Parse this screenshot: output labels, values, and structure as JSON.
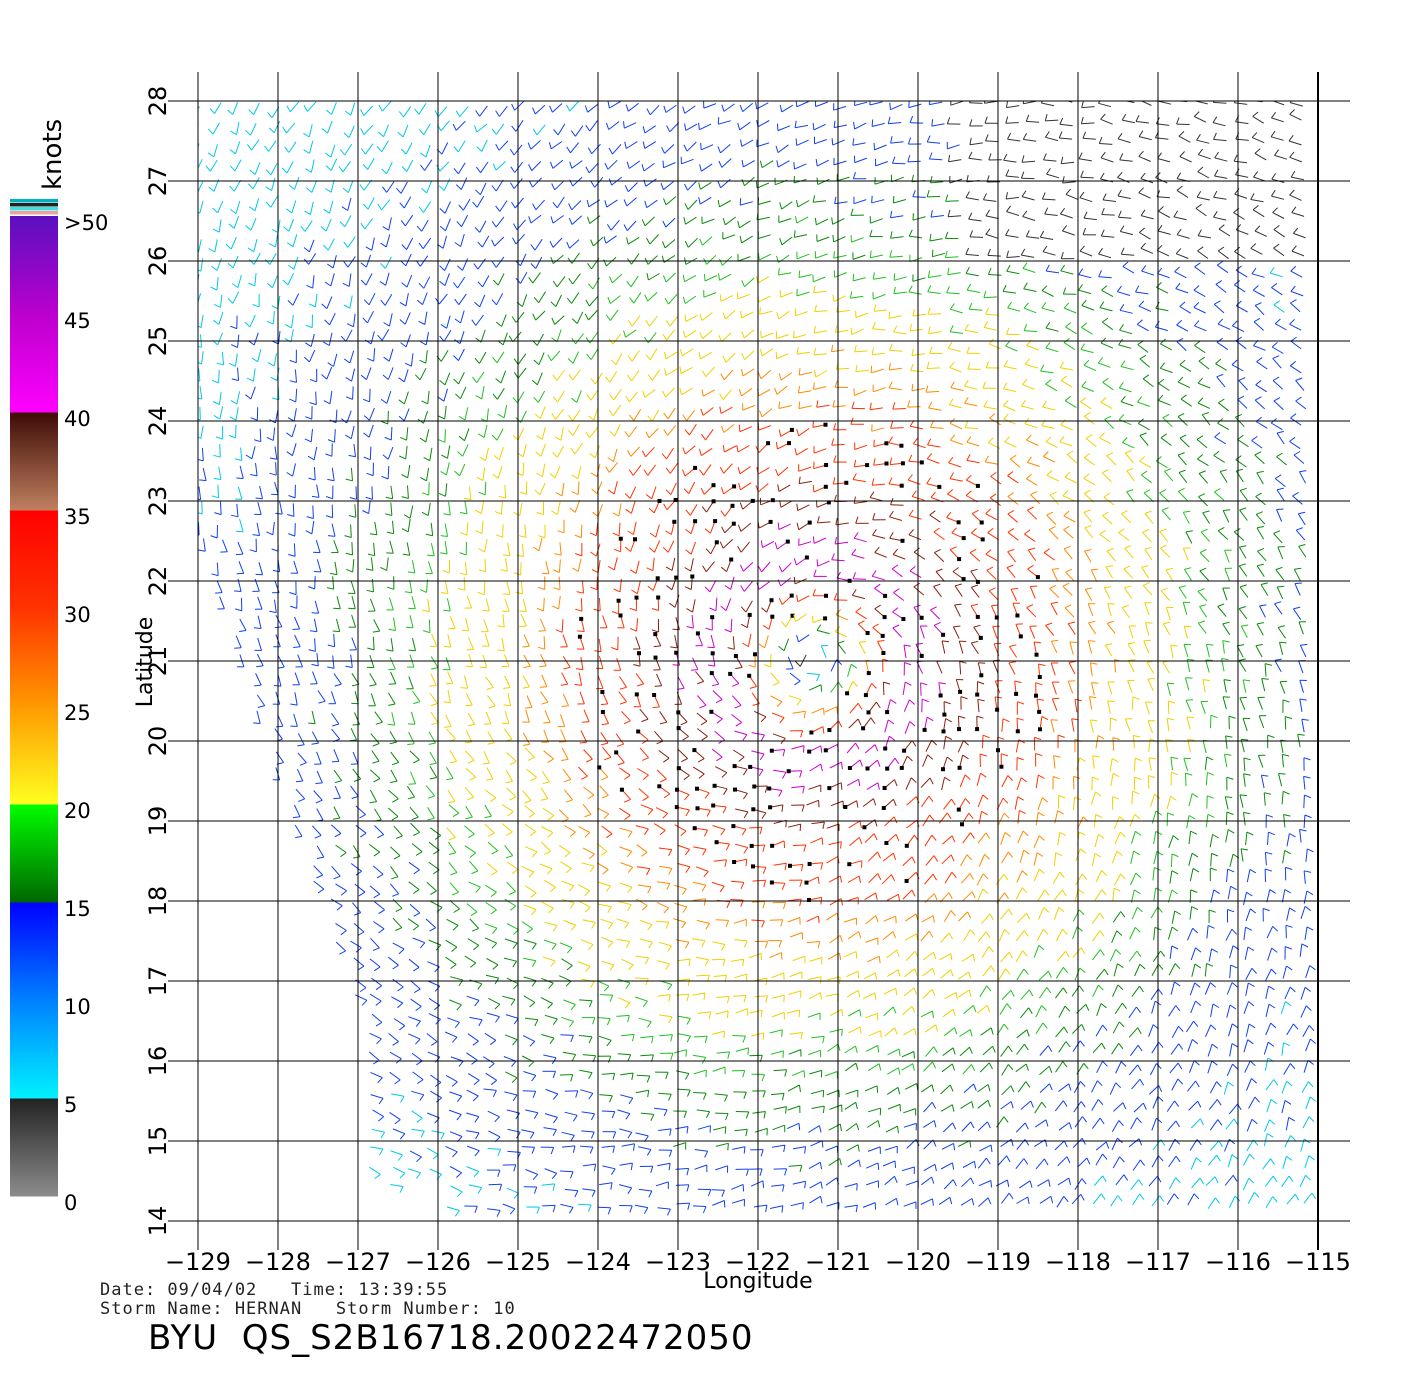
{
  "colorbar": {
    "unit_label": "knots",
    "labels": [
      ">50",
      "45",
      "40",
      "35",
      "30",
      "25",
      "20",
      "15",
      "10",
      "5",
      "0"
    ],
    "segments": [
      {
        "from": 0,
        "to": 5,
        "colors": [
          "#8c8c8c",
          "#222222"
        ]
      },
      {
        "from": 5,
        "to": 10,
        "colors": [
          "#00f2ff",
          "#0080ff"
        ]
      },
      {
        "from": 10,
        "to": 15,
        "colors": [
          "#0080ff",
          "#0000ff"
        ]
      },
      {
        "from": 15,
        "to": 20,
        "colors": [
          "#006600",
          "#00ff00"
        ]
      },
      {
        "from": 20,
        "to": 25,
        "colors": [
          "#ffff20",
          "#ff9900"
        ]
      },
      {
        "from": 25,
        "to": 30,
        "colors": [
          "#ff9900",
          "#ff3300"
        ]
      },
      {
        "from": 30,
        "to": 35,
        "colors": [
          "#ff3300",
          "#ff0000"
        ]
      },
      {
        "from": 35,
        "to": 40,
        "colors": [
          "#c08060",
          "#3d0a05"
        ]
      },
      {
        "from": 40,
        "to": 45,
        "colors": [
          "#ff00ff",
          "#bb00cc"
        ]
      },
      {
        "from": 45,
        "to": 50,
        "colors": [
          "#bb00cc",
          "#5a10c0"
        ]
      }
    ]
  },
  "axes": {
    "xlabel": "Longitude",
    "ylabel": "Latitude",
    "x_ticks": [
      -129,
      -128,
      -127,
      -126,
      -125,
      -124,
      -123,
      -122,
      -121,
      -120,
      -119,
      -118,
      -117,
      -116,
      -115
    ],
    "x_tick_labels": [
      "−129",
      "−128",
      "−127",
      "−126",
      "−125",
      "−124",
      "−123",
      "−122",
      "−121",
      "−120",
      "−119",
      "−118",
      "−117",
      "−116",
      "−115"
    ],
    "y_ticks": [
      14,
      15,
      16,
      17,
      18,
      19,
      20,
      21,
      22,
      23,
      24,
      25,
      26,
      27,
      28
    ],
    "y_tick_labels": [
      "14",
      "15",
      "16",
      "17",
      "18",
      "19",
      "20",
      "21",
      "22",
      "23",
      "24",
      "25",
      "26",
      "27",
      "28"
    ],
    "xlim": [
      -129,
      -114.5
    ],
    "ylim": [
      14,
      28
    ]
  },
  "wind_field": {
    "type": "wind-barbs",
    "center": {
      "lon": -121.3,
      "lat": 21.0
    },
    "max_speed_knots": 44,
    "rain_flagged": "black square markers near the storm center"
  },
  "info": {
    "date_line": "Date: 09/04/02   Time: 13:39:55",
    "storm_line": "Storm Name: HERNAN   Storm Number: 10"
  },
  "title": "BYU  QS_S2B16718.20022472050"
}
